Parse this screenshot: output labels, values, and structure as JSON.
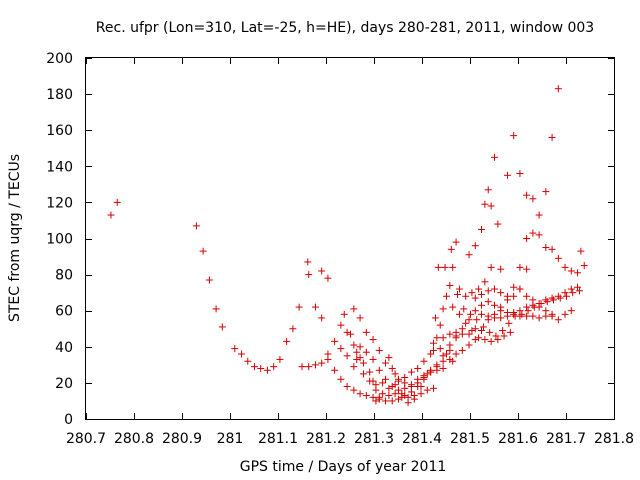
{
  "chart_data": {
    "type": "scatter",
    "title": "Rec. ufpr (Lon=310, Lat=-25, h=HE), days 280-281, 2011, window 003",
    "xlabel": "GPS time / Days of year 2011",
    "ylabel": "STEC from uqrg / TECUs",
    "xlim": [
      280.7,
      281.8
    ],
    "ylim": [
      0,
      200
    ],
    "xticks": [
      "280.7",
      "280.8",
      "280.9",
      "281",
      "281.1",
      "281.2",
      "281.3",
      "281.4",
      "281.5",
      "281.6",
      "281.7",
      "281.8"
    ],
    "yticks": [
      "0",
      "20",
      "40",
      "60",
      "80",
      "100",
      "120",
      "140",
      "160",
      "180",
      "200"
    ],
    "grid": false,
    "marker": "plus",
    "color": "#d40000",
    "series": [
      {
        "points": [
          [
            280.752,
            113
          ],
          [
            280.765,
            120
          ],
          [
            280.93,
            107
          ],
          [
            280.944,
            93
          ],
          [
            280.957,
            77
          ],
          [
            280.971,
            61
          ],
          [
            280.984,
            51
          ],
          [
            281.01,
            39
          ],
          [
            281.024,
            36
          ],
          [
            281.037,
            32
          ],
          [
            281.051,
            29
          ],
          [
            281.064,
            28
          ],
          [
            281.078,
            27
          ],
          [
            281.091,
            29
          ],
          [
            281.104,
            33
          ],
          [
            281.118,
            43
          ],
          [
            281.131,
            50
          ],
          [
            281.144,
            62
          ],
          [
            281.162,
            87
          ],
          [
            281.164,
            80
          ],
          [
            281.178,
            62
          ],
          [
            281.191,
            56
          ],
          [
            281.191,
            82
          ],
          [
            281.204,
            78
          ],
          [
            281.204,
            36
          ],
          [
            281.218,
            43
          ],
          [
            281.231,
            52
          ],
          [
            281.244,
            48
          ],
          [
            281.258,
            61
          ],
          [
            281.271,
            56
          ],
          [
            281.284,
            48
          ],
          [
            281.298,
            44
          ],
          [
            281.311,
            38
          ],
          [
            281.324,
            31
          ],
          [
            281.338,
            28
          ],
          [
            281.351,
            22
          ],
          [
            281.364,
            20
          ],
          [
            281.378,
            18
          ],
          [
            281.391,
            20
          ],
          [
            281.404,
            23
          ],
          [
            281.418,
            26
          ],
          [
            281.431,
            29
          ],
          [
            281.444,
            32
          ],
          [
            281.458,
            38
          ],
          [
            281.471,
            45
          ],
          [
            281.15,
            29
          ],
          [
            281.164,
            29
          ],
          [
            281.178,
            30
          ],
          [
            281.191,
            31
          ],
          [
            281.204,
            33
          ],
          [
            281.218,
            27
          ],
          [
            281.231,
            22
          ],
          [
            281.244,
            18
          ],
          [
            281.258,
            16
          ],
          [
            281.271,
            14
          ],
          [
            281.284,
            13
          ],
          [
            281.298,
            12
          ],
          [
            281.311,
            11
          ],
          [
            281.324,
            10
          ],
          [
            281.338,
            10
          ],
          [
            281.351,
            11
          ],
          [
            281.364,
            13
          ],
          [
            281.378,
            15
          ],
          [
            281.391,
            18
          ],
          [
            281.404,
            22
          ],
          [
            281.418,
            26
          ],
          [
            281.431,
            27
          ],
          [
            281.444,
            28
          ],
          [
            281.458,
            33
          ],
          [
            281.471,
            36
          ],
          [
            281.484,
            38
          ],
          [
            281.498,
            41
          ],
          [
            281.511,
            44
          ],
          [
            281.524,
            49
          ],
          [
            281.538,
            55
          ],
          [
            281.551,
            58
          ],
          [
            281.564,
            62
          ],
          [
            281.578,
            66
          ],
          [
            281.591,
            68
          ],
          [
            281.604,
            72
          ],
          [
            281.231,
            39
          ],
          [
            281.244,
            35
          ],
          [
            281.258,
            41
          ],
          [
            281.271,
            40
          ],
          [
            281.284,
            37
          ],
          [
            281.298,
            33
          ],
          [
            281.311,
            27
          ],
          [
            281.324,
            22
          ],
          [
            281.338,
            18
          ],
          [
            281.351,
            16
          ],
          [
            281.364,
            17
          ],
          [
            281.378,
            19
          ],
          [
            281.391,
            22
          ],
          [
            281.404,
            24
          ],
          [
            281.418,
            27
          ],
          [
            281.431,
            30
          ],
          [
            281.444,
            35
          ],
          [
            281.458,
            41
          ],
          [
            281.471,
            46
          ],
          [
            281.484,
            50
          ],
          [
            281.498,
            55
          ],
          [
            281.511,
            60
          ],
          [
            281.524,
            63
          ],
          [
            281.538,
            65
          ],
          [
            281.551,
            63
          ],
          [
            281.564,
            60
          ],
          [
            281.578,
            59
          ],
          [
            281.591,
            59
          ],
          [
            281.604,
            60
          ],
          [
            281.618,
            62
          ],
          [
            281.631,
            63
          ],
          [
            281.644,
            64
          ],
          [
            281.658,
            66
          ],
          [
            281.671,
            67
          ],
          [
            281.684,
            68
          ],
          [
            281.698,
            70
          ],
          [
            281.711,
            72
          ],
          [
            281.724,
            73
          ],
          [
            281.238,
            58
          ],
          [
            281.251,
            47
          ],
          [
            281.264,
            33
          ],
          [
            281.278,
            25
          ],
          [
            281.291,
            21
          ],
          [
            281.304,
            19
          ],
          [
            281.318,
            20
          ],
          [
            281.331,
            34
          ],
          [
            281.344,
            25
          ],
          [
            281.358,
            14
          ],
          [
            281.371,
            12
          ],
          [
            281.384,
            13
          ],
          [
            281.398,
            18
          ],
          [
            281.411,
            25
          ],
          [
            281.424,
            38
          ],
          [
            281.431,
            45
          ],
          [
            281.438,
            52
          ],
          [
            281.444,
            61
          ],
          [
            281.451,
            68
          ],
          [
            281.458,
            74
          ],
          [
            281.464,
            84
          ],
          [
            281.471,
            98
          ],
          [
            281.478,
            72
          ],
          [
            281.491,
            68
          ],
          [
            281.504,
            70
          ],
          [
            281.518,
            72
          ],
          [
            281.531,
            76
          ],
          [
            281.544,
            84
          ],
          [
            281.558,
            108
          ],
          [
            281.428,
            56
          ],
          [
            281.434,
            84
          ],
          [
            281.448,
            84
          ],
          [
            281.461,
            94
          ],
          [
            281.474,
            69
          ],
          [
            281.487,
            61
          ],
          [
            281.501,
            58
          ],
          [
            281.514,
            55
          ],
          [
            281.528,
            51
          ],
          [
            281.541,
            48
          ],
          [
            281.554,
            46
          ],
          [
            281.568,
            49
          ],
          [
            281.581,
            53
          ],
          [
            281.594,
            57
          ],
          [
            281.608,
            58
          ],
          [
            281.621,
            60
          ],
          [
            281.634,
            62
          ],
          [
            281.648,
            64
          ],
          [
            281.661,
            65
          ],
          [
            281.674,
            66
          ],
          [
            281.688,
            67
          ],
          [
            281.701,
            68
          ],
          [
            281.714,
            70
          ],
          [
            281.728,
            71
          ],
          [
            281.464,
            62
          ],
          [
            281.478,
            58
          ],
          [
            281.491,
            53
          ],
          [
            281.504,
            49
          ],
          [
            281.518,
            45
          ],
          [
            281.531,
            44
          ],
          [
            281.544,
            43
          ],
          [
            281.558,
            44
          ],
          [
            281.571,
            46
          ],
          [
            281.584,
            48
          ],
          [
            281.498,
            91
          ],
          [
            281.511,
            96
          ],
          [
            281.524,
            105
          ],
          [
            281.531,
            119
          ],
          [
            281.538,
            127
          ],
          [
            281.544,
            118
          ],
          [
            281.551,
            145
          ],
          [
            281.564,
            83
          ],
          [
            281.578,
            135
          ],
          [
            281.591,
            157
          ],
          [
            281.604,
            136
          ],
          [
            281.618,
            124
          ],
          [
            281.631,
            122
          ],
          [
            281.644,
            113
          ],
          [
            281.658,
            126
          ],
          [
            281.671,
            156
          ],
          [
            281.684,
            183
          ],
          [
            281.618,
            100
          ],
          [
            281.631,
            103
          ],
          [
            281.644,
            102
          ],
          [
            281.658,
            95
          ],
          [
            281.671,
            94
          ],
          [
            281.684,
            89
          ],
          [
            281.698,
            84
          ],
          [
            281.711,
            82
          ],
          [
            281.724,
            81
          ],
          [
            281.731,
            93
          ],
          [
            281.738,
            85
          ],
          [
            281.604,
            84
          ],
          [
            281.618,
            83
          ],
          [
            281.591,
            73
          ],
          [
            281.604,
            72
          ],
          [
            281.618,
            68
          ],
          [
            281.631,
            66
          ],
          [
            281.644,
            62
          ],
          [
            281.658,
            60
          ],
          [
            281.671,
            57
          ],
          [
            281.684,
            55
          ],
          [
            281.698,
            58
          ],
          [
            281.711,
            60
          ],
          [
            281.524,
            58
          ],
          [
            281.538,
            57
          ],
          [
            281.551,
            56
          ],
          [
            281.564,
            56
          ],
          [
            281.578,
            57
          ],
          [
            281.591,
            58
          ],
          [
            281.604,
            57
          ],
          [
            281.618,
            57
          ],
          [
            281.631,
            57
          ],
          [
            281.644,
            56
          ],
          [
            281.658,
            57
          ],
          [
            281.671,
            58
          ],
          [
            281.511,
            67
          ],
          [
            281.524,
            69
          ],
          [
            281.538,
            71
          ],
          [
            281.551,
            72
          ],
          [
            281.564,
            70
          ],
          [
            281.578,
            68
          ],
          [
            281.484,
            47
          ],
          [
            281.498,
            47
          ],
          [
            281.511,
            50
          ],
          [
            281.458,
            47
          ],
          [
            281.471,
            48
          ],
          [
            281.444,
            45
          ],
          [
            281.451,
            36
          ],
          [
            281.464,
            32
          ],
          [
            281.438,
            39
          ],
          [
            281.424,
            42
          ],
          [
            281.418,
            36
          ],
          [
            281.404,
            32
          ],
          [
            281.391,
            28
          ],
          [
            281.378,
            26
          ],
          [
            281.364,
            23
          ],
          [
            281.351,
            21
          ],
          [
            281.344,
            19
          ],
          [
            281.331,
            17
          ],
          [
            281.318,
            14
          ],
          [
            281.304,
            16
          ],
          [
            281.298,
            21
          ],
          [
            281.291,
            26
          ],
          [
            281.278,
            31
          ],
          [
            281.271,
            34
          ],
          [
            281.264,
            37
          ],
          [
            281.258,
            29
          ],
          [
            281.304,
            10
          ],
          [
            281.311,
            12
          ],
          [
            281.331,
            13
          ],
          [
            281.344,
            14
          ],
          [
            281.358,
            12
          ],
          [
            281.371,
            9
          ],
          [
            281.384,
            11
          ],
          [
            281.398,
            14
          ],
          [
            281.411,
            16
          ],
          [
            281.424,
            17
          ]
        ]
      }
    ]
  }
}
